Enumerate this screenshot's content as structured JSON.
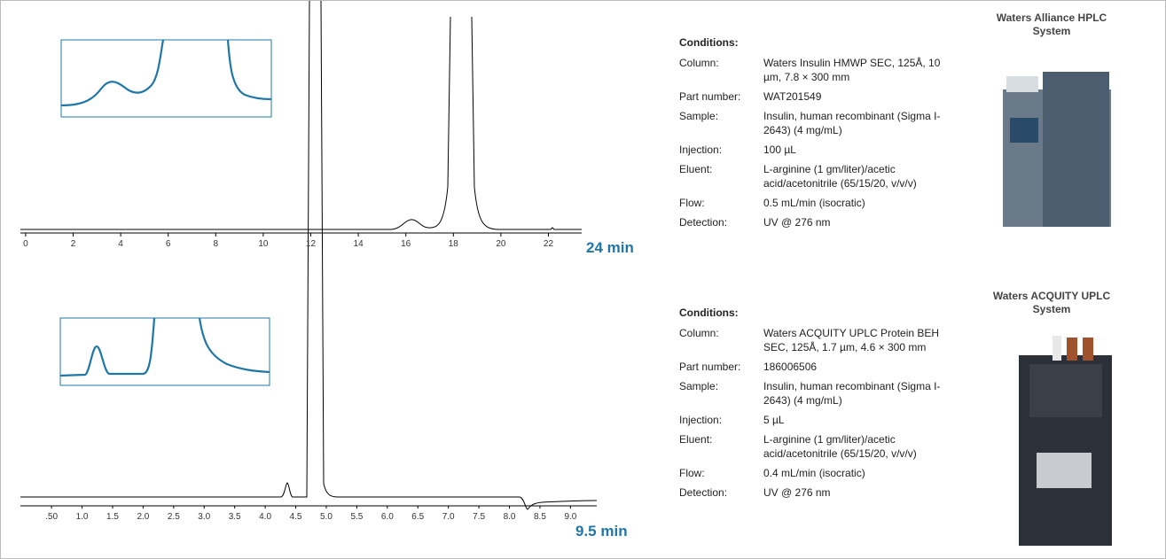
{
  "panels": [
    {
      "axis": {
        "xlim": [
          -0.22,
          23.4
        ],
        "xticks": [
          0,
          2,
          4,
          6,
          8,
          10,
          12,
          14,
          16,
          18,
          20,
          22
        ],
        "end_label": "24 min"
      },
      "conditions": {
        "heading": "Conditions:",
        "rows": [
          [
            "Column:",
            "Waters Insulin HMWP SEC, 125Å, 10 µm, 7.8 × 300 mm"
          ],
          [
            "Part number:",
            "WAT201549"
          ],
          [
            "Sample:",
            "Insulin, human recombinant (Sigma I-2643) (4 mg/mL)"
          ],
          [
            "Injection:",
            "100 µL"
          ],
          [
            "Eluent:",
            "L-arginine (1 gm/liter)/acetic acid/acetonitrile (65/15/20, v/v/v)"
          ],
          [
            "Flow:",
            "0.5 mL/min (isocratic)"
          ],
          [
            "Detection:",
            "UV @ 276 nm"
          ]
        ]
      },
      "system": "Waters Alliance HPLC System"
    },
    {
      "axis": {
        "xlim": [
          -0.01,
          9.43
        ],
        "xticks": [
          {
            "value": 0.5,
            "label": ".50"
          },
          {
            "value": 1,
            "label": "1.0"
          },
          1.5,
          {
            "value": 2,
            "label": "2.0"
          },
          2.5,
          {
            "value": 3,
            "label": "3.0"
          },
          3.5,
          {
            "value": 4,
            "label": "4.0"
          },
          4.5,
          {
            "value": 5,
            "label": "5.0"
          },
          5.5,
          {
            "value": 6,
            "label": "6.0"
          },
          6.5,
          {
            "value": 7,
            "label": "7.0"
          },
          7.5,
          {
            "value": 8,
            "label": "8.0"
          },
          8.5,
          {
            "value": 9,
            "label": "9.0"
          }
        ],
        "end_label": "9.5 min"
      },
      "conditions": {
        "heading": "Conditions:",
        "rows": [
          [
            "Column:",
            "Waters ACQUITY UPLC Protein BEH SEC, 125Å, 1.7 µm, 4.6 × 300 mm"
          ],
          [
            "Part number:",
            "186006506"
          ],
          [
            "Sample:",
            "Insulin, human recombinant (Sigma I-2643) (4 mg/mL)"
          ],
          [
            "Injection:",
            "5 µL"
          ],
          [
            "Eluent:",
            "L-arginine (1 gm/liter)/acetic acid/acetonitrile (65/15/20, v/v/v)"
          ],
          [
            "Flow:",
            "0.4 mL/min (isocratic)"
          ],
          [
            "Detection:",
            "UV @ 276 nm"
          ]
        ]
      },
      "system": "Waters ACQUITY UPLC System"
    }
  ]
}
